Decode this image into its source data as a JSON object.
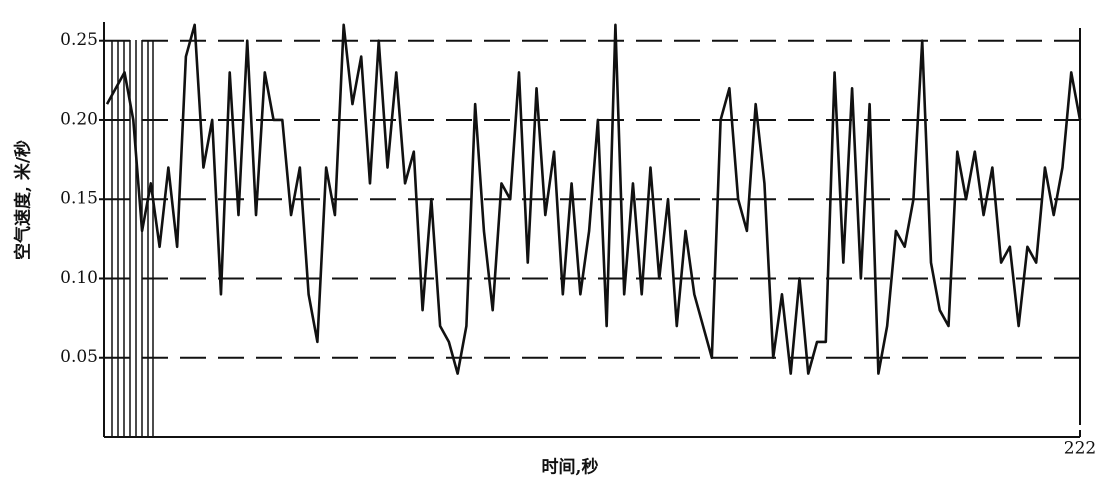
{
  "chart_data": {
    "type": "line",
    "y_label": "空气速度, 米/秒",
    "x_label": "时间,秒",
    "xlim": [
      0,
      222
    ],
    "xticks": [
      222
    ],
    "ylim": [
      0,
      0.27
    ],
    "yticks": [
      0.05,
      {
        "value": 0.1,
        "label": "0.10"
      },
      0.15,
      {
        "value": 0.2,
        "label": "0.20"
      },
      0.25
    ],
    "grid": true,
    "x": [
      0,
      2,
      4,
      6,
      8,
      10,
      12,
      14,
      16,
      18,
      20,
      22,
      24,
      26,
      28,
      30,
      32,
      34,
      36,
      38,
      40,
      42,
      44,
      46,
      48,
      50,
      52,
      54,
      56,
      58,
      60,
      62,
      64,
      66,
      68,
      70,
      72,
      74,
      76,
      78,
      80,
      82,
      84,
      86,
      88,
      90,
      92,
      94,
      96,
      98,
      100,
      102,
      104,
      106,
      108,
      110,
      112,
      114,
      116,
      118,
      120,
      122,
      124,
      126,
      128,
      130,
      132,
      134,
      136,
      138,
      140,
      142,
      144,
      146,
      148,
      150,
      152,
      154,
      156,
      158,
      160,
      162,
      164,
      166,
      168,
      170,
      172,
      174,
      176,
      178,
      180,
      182,
      184,
      186,
      188,
      190,
      192,
      194,
      196,
      198,
      200,
      202,
      204,
      206,
      208,
      210,
      212,
      214,
      216,
      218,
      220,
      222
    ],
    "series": [
      {
        "color": "#111111",
        "values": [
          0.21,
          0.22,
          0.23,
          0.2,
          0.13,
          0.16,
          0.12,
          0.17,
          0.12,
          0.24,
          0.26,
          0.17,
          0.2,
          0.09,
          0.23,
          0.14,
          0.25,
          0.14,
          0.23,
          0.2,
          0.2,
          0.14,
          0.17,
          0.09,
          0.06,
          0.17,
          0.14,
          0.26,
          0.21,
          0.24,
          0.16,
          0.25,
          0.17,
          0.23,
          0.16,
          0.18,
          0.08,
          0.15,
          0.07,
          0.06,
          0.04,
          0.07,
          0.21,
          0.13,
          0.08,
          0.16,
          0.15,
          0.23,
          0.11,
          0.22,
          0.14,
          0.18,
          0.09,
          0.16,
          0.09,
          0.13,
          0.2,
          0.07,
          0.26,
          0.09,
          0.16,
          0.09,
          0.17,
          0.1,
          0.15,
          0.07,
          0.13,
          0.09,
          0.07,
          0.05,
          0.2,
          0.22,
          0.15,
          0.13,
          0.21,
          0.16,
          0.05,
          0.09,
          0.04,
          0.1,
          0.04,
          0.06,
          0.06,
          0.23,
          0.11,
          0.22,
          0.1,
          0.21,
          0.04,
          0.07,
          0.13,
          0.12,
          0.15,
          0.25,
          0.11,
          0.08,
          0.07,
          0.18,
          0.15,
          0.18,
          0.14,
          0.17,
          0.11,
          0.12,
          0.07,
          0.12,
          0.11,
          0.17,
          0.14,
          0.17,
          0.23,
          0.2
        ]
      }
    ]
  }
}
